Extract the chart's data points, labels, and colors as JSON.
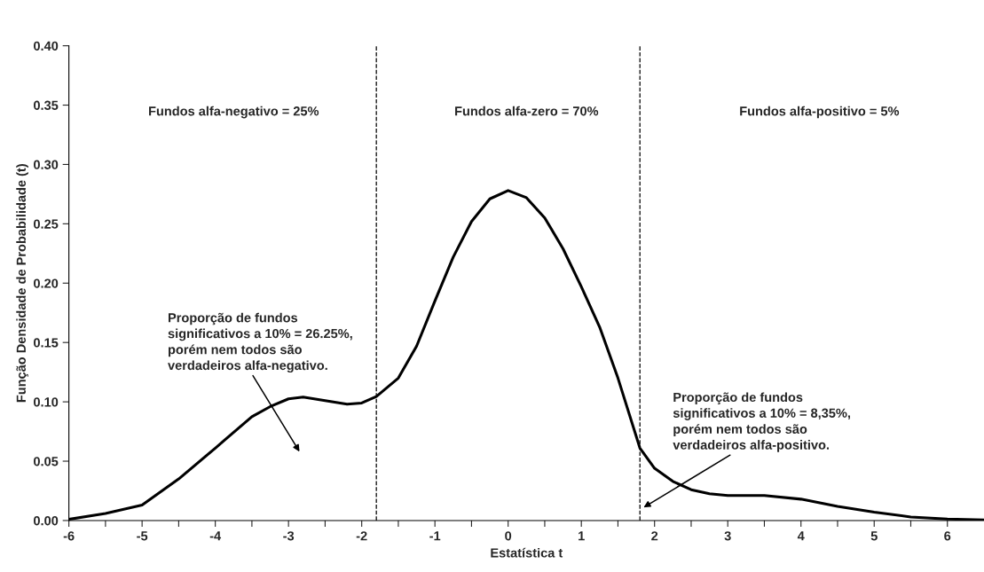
{
  "chart_data": {
    "type": "line",
    "xlabel": "Estatística t",
    "ylabel": "Função Densidade de Probabilidade (t)",
    "x": [
      -6,
      -5.5,
      -5,
      -4.5,
      -4,
      -3.5,
      -3.25,
      -3,
      -2.8,
      -2.5,
      -2.2,
      -2,
      -1.8,
      -1.5,
      -1.25,
      -1,
      -0.75,
      -0.5,
      -0.25,
      0,
      0.25,
      0.5,
      0.75,
      1,
      1.25,
      1.5,
      1.8,
      2,
      2.25,
      2.5,
      2.75,
      3,
      3.5,
      4,
      4.5,
      5,
      5.5,
      6,
      6.5
    ],
    "series": [
      {
        "color": "#000000",
        "values": [
          0.001,
          0.006,
          0.013,
          0.035,
          0.061,
          0.0875,
          0.096,
          0.1025,
          0.104,
          0.101,
          0.098,
          0.099,
          0.1045,
          0.12,
          0.147,
          0.185,
          0.222,
          0.252,
          0.271,
          0.278,
          0.272,
          0.255,
          0.229,
          0.197,
          0.163,
          0.12,
          0.061,
          0.044,
          0.033,
          0.026,
          0.0225,
          0.021,
          0.021,
          0.018,
          0.012,
          0.007,
          0.003,
          0.0013,
          0.0005
        ]
      }
    ],
    "xlim": [
      -6,
      6.5
    ],
    "xticks": [
      -6,
      {
        "value": -5.5,
        "label": null
      },
      -5,
      {
        "value": -4.5,
        "label": null
      },
      -4,
      {
        "value": -3.5,
        "label": null
      },
      -3,
      {
        "value": -2.5,
        "label": null
      },
      -2,
      {
        "value": -1.5,
        "label": null
      },
      -1,
      {
        "value": -0.5,
        "label": null
      },
      0,
      {
        "value": 0.5,
        "label": null
      },
      1,
      {
        "value": 1.5,
        "label": null
      },
      2,
      {
        "value": 2.5,
        "label": null
      },
      3,
      {
        "value": 3.5,
        "label": null
      },
      4,
      {
        "value": 4.5,
        "label": null
      },
      5,
      {
        "value": 5.5,
        "label": null
      },
      6
    ],
    "ylim": [
      0,
      0.4
    ],
    "yticks": [
      {
        "value": 0,
        "label": "0.00"
      },
      {
        "value": 0.05,
        "label": "0.05"
      },
      {
        "value": 0.1,
        "label": "0.10"
      },
      {
        "value": 0.15,
        "label": "0.15"
      },
      {
        "value": 0.2,
        "label": "0.20"
      },
      {
        "value": 0.25,
        "label": "0.25"
      },
      {
        "value": 0.3,
        "label": "0.30"
      },
      {
        "value": 0.35,
        "label": "0.35"
      },
      {
        "value": 0.4,
        "label": "0.40"
      }
    ],
    "ref_lines": [
      {
        "axis": "x",
        "value": -1.8,
        "color": "#000000",
        "line_style": "dashed"
      },
      {
        "axis": "x",
        "value": 1.8,
        "color": "#000000",
        "line_style": "dashed"
      }
    ],
    "annotations": [
      "Fundos alfa-negativo = 25%",
      "Fundos alfa-zero = 70%",
      "Fundos alfa-positivo = 5%",
      "Proporção de fundos\nsignificativos a 10% = 26.25%,\nporém nem todos são\nverdadeiros alfa-negativo.",
      "Proporção de fundos\nsignificativos a 10% = 8,35%,\nporém nem todos são\nverdadeiros alfa-positivo."
    ],
    "grid": false,
    "legend": false,
    "marker": "none",
    "line_style": "solid"
  }
}
